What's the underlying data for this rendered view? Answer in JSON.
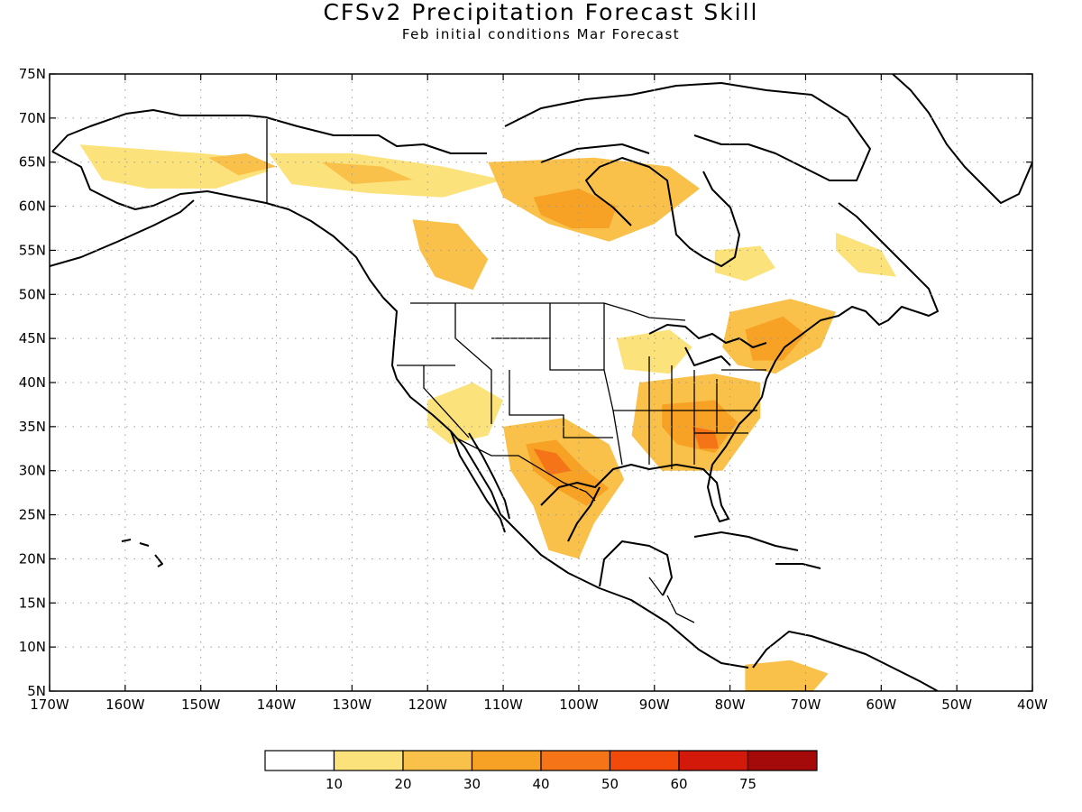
{
  "header": {
    "title": "CFSv2 Precipitation Forecast Skill",
    "subtitle": "Feb initial conditions  Mar Forecast"
  },
  "map": {
    "lon_range": [
      -170,
      -40
    ],
    "lat_range": [
      5,
      75
    ],
    "lon_labels": [
      "170W",
      "160W",
      "150W",
      "140W",
      "130W",
      "120W",
      "110W",
      "100W",
      "90W",
      "80W",
      "70W",
      "60W",
      "50W",
      "40W"
    ],
    "lat_labels": [
      "75N",
      "70N",
      "65N",
      "60N",
      "55N",
      "50N",
      "45N",
      "40N",
      "35N",
      "30N",
      "25N",
      "20N",
      "15N",
      "10N",
      "5N"
    ],
    "grid": true
  },
  "legend": {
    "ticks": [
      "10",
      "20",
      "30",
      "40",
      "50",
      "60",
      "75"
    ],
    "colors": [
      "#ffffff",
      "#fbe27a",
      "#f9c04a",
      "#f7a224",
      "#f57418",
      "#f24a0a",
      "#d31a0a",
      "#a50a0a"
    ]
  },
  "skill_regions": [
    {
      "name": "alaska-west",
      "level": 1,
      "points": [
        [
          -166,
          67
        ],
        [
          -158,
          66.5
        ],
        [
          -150,
          66
        ],
        [
          -144,
          65.5
        ],
        [
          -141,
          64
        ],
        [
          -148,
          62
        ],
        [
          -157,
          62
        ],
        [
          -163,
          63
        ]
      ]
    },
    {
      "name": "alaska-interior",
      "level": 2,
      "points": [
        [
          -149,
          65.5
        ],
        [
          -144,
          66
        ],
        [
          -140,
          64.5
        ],
        [
          -145,
          63.5
        ]
      ]
    },
    {
      "name": "yukon",
      "level": 1,
      "points": [
        [
          -141,
          66
        ],
        [
          -130,
          66
        ],
        [
          -118,
          64.5
        ],
        [
          -110,
          63
        ],
        [
          -118,
          61
        ],
        [
          -128,
          61.5
        ],
        [
          -138,
          62.5
        ]
      ]
    },
    {
      "name": "yukon-core",
      "level": 2,
      "points": [
        [
          -134,
          65
        ],
        [
          -126,
          64.5
        ],
        [
          -122,
          63
        ],
        [
          -130,
          62.5
        ]
      ]
    },
    {
      "name": "canada-central",
      "level": 2,
      "points": [
        [
          -112,
          65
        ],
        [
          -98,
          65.5
        ],
        [
          -88,
          64.5
        ],
        [
          -84,
          62
        ],
        [
          -90,
          58
        ],
        [
          -96,
          56
        ],
        [
          -104,
          58
        ],
        [
          -110,
          61
        ]
      ]
    },
    {
      "name": "canada-central-core",
      "level": 3,
      "points": [
        [
          -106,
          61
        ],
        [
          -100,
          62
        ],
        [
          -95,
          60
        ],
        [
          -96,
          57.5
        ],
        [
          -101,
          57.5
        ],
        [
          -105,
          59
        ]
      ]
    },
    {
      "name": "alberta",
      "level": 2,
      "points": [
        [
          -122,
          58.5
        ],
        [
          -116,
          58
        ],
        [
          -112,
          54
        ],
        [
          -114,
          50.5
        ],
        [
          -119,
          52
        ],
        [
          -121,
          55
        ]
      ]
    },
    {
      "name": "quebec",
      "level": 1,
      "points": [
        [
          -82,
          55
        ],
        [
          -76,
          55.5
        ],
        [
          -74,
          53
        ],
        [
          -78,
          51.5
        ],
        [
          -82,
          52.5
        ]
      ]
    },
    {
      "name": "labrador",
      "level": 1,
      "points": [
        [
          -66,
          57
        ],
        [
          -60,
          55
        ],
        [
          -58,
          52
        ],
        [
          -63,
          52.5
        ],
        [
          -66,
          55
        ]
      ]
    },
    {
      "name": "northeast",
      "level": 2,
      "points": [
        [
          -80,
          48
        ],
        [
          -72,
          49.5
        ],
        [
          -66,
          48
        ],
        [
          -68,
          44
        ],
        [
          -74,
          41
        ],
        [
          -79,
          42
        ],
        [
          -81,
          44
        ]
      ]
    },
    {
      "name": "northeast-core",
      "level": 3,
      "points": [
        [
          -78,
          46
        ],
        [
          -73,
          47.5
        ],
        [
          -70,
          45.5
        ],
        [
          -73,
          42.5
        ],
        [
          -77,
          42.5
        ]
      ]
    },
    {
      "name": "midwest-lake",
      "level": 1,
      "points": [
        [
          -95,
          45
        ],
        [
          -88,
          46
        ],
        [
          -85,
          44
        ],
        [
          -88,
          41
        ],
        [
          -94,
          41.5
        ]
      ]
    },
    {
      "name": "southeast",
      "level": 2,
      "points": [
        [
          -92,
          40
        ],
        [
          -82,
          41
        ],
        [
          -76,
          40
        ],
        [
          -76,
          36
        ],
        [
          -81,
          30
        ],
        [
          -89,
          30
        ],
        [
          -93,
          34
        ]
      ]
    },
    {
      "name": "southeast-core",
      "level": 3,
      "points": [
        [
          -89,
          37.5
        ],
        [
          -82,
          38
        ],
        [
          -79,
          35.5
        ],
        [
          -82,
          32
        ],
        [
          -87,
          33
        ],
        [
          -89,
          35
        ]
      ]
    },
    {
      "name": "southeast-peak",
      "level": 4,
      "points": [
        [
          -85,
          35
        ],
        [
          -82,
          34.5
        ],
        [
          -81.5,
          32.5
        ],
        [
          -84,
          32.5
        ]
      ]
    },
    {
      "name": "southwest",
      "level": 1,
      "points": [
        [
          -120,
          38
        ],
        [
          -114,
          40
        ],
        [
          -110,
          38
        ],
        [
          -112,
          34
        ],
        [
          -117,
          33
        ],
        [
          -120,
          35
        ]
      ]
    },
    {
      "name": "texas-mexico",
      "level": 2,
      "points": [
        [
          -110,
          35
        ],
        [
          -102,
          36
        ],
        [
          -96,
          33
        ],
        [
          -94,
          29
        ],
        [
          -98,
          24
        ],
        [
          -100,
          20
        ],
        [
          -104,
          21
        ],
        [
          -106,
          26
        ],
        [
          -109,
          30
        ]
      ]
    },
    {
      "name": "texas-core",
      "level": 3,
      "points": [
        [
          -107,
          33
        ],
        [
          -103,
          33.5
        ],
        [
          -99,
          30
        ],
        [
          -96,
          28
        ],
        [
          -99,
          26
        ],
        [
          -103,
          28
        ],
        [
          -106,
          30
        ]
      ]
    },
    {
      "name": "texas-peak",
      "level": 4,
      "points": [
        [
          -106,
          32.5
        ],
        [
          -103,
          32
        ],
        [
          -101,
          30
        ],
        [
          -104,
          29.5
        ]
      ]
    },
    {
      "name": "south-america",
      "level": 2,
      "points": [
        [
          -78,
          8
        ],
        [
          -72,
          8.5
        ],
        [
          -67,
          7
        ],
        [
          -69,
          5
        ],
        [
          -78,
          5
        ]
      ]
    }
  ]
}
